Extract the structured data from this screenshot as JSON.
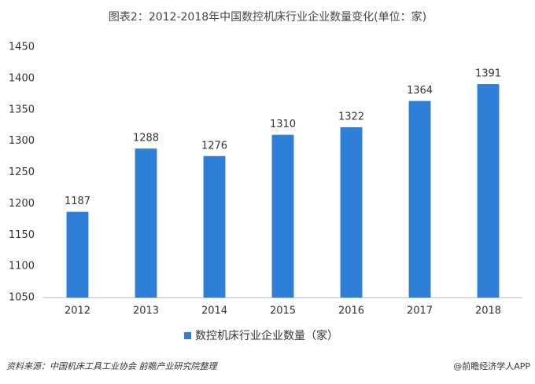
{
  "chart_data": {
    "type": "bar",
    "title": "图表2：2012-2018年中国数控机床行业企业数量变化(单位：家)",
    "categories": [
      "2012",
      "2013",
      "2014",
      "2015",
      "2016",
      "2017",
      "2018"
    ],
    "series": [
      {
        "name": "数控机床行业企业数量（家）",
        "color": "#2f7ed8",
        "values": [
          1187,
          1288,
          1276,
          1310,
          1322,
          1364,
          1391
        ]
      }
    ],
    "ylim": [
      1050,
      1450
    ],
    "yticks": [
      1050,
      1100,
      1150,
      1200,
      1250,
      1300,
      1350,
      1400,
      1450
    ],
    "grid": false,
    "legend": "bottom"
  },
  "footer": {
    "source": "资料来源：中国机床工具工业协会 前瞻产业研究院整理",
    "credit": "@前瞻经济学人APP"
  }
}
